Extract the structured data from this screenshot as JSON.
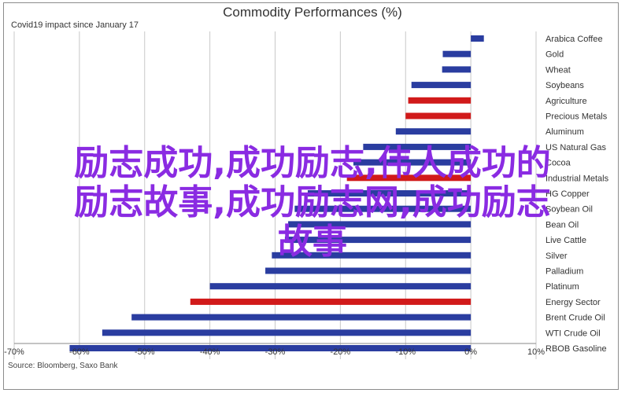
{
  "chart_data": {
    "type": "bar",
    "orientation": "horizontal",
    "title": "Commodity Performances (%)",
    "subtitle": "Covid19 impact since January 17",
    "source": "Source: Bloomberg, Saxo Bank",
    "xlim": [
      -70,
      10
    ],
    "x_ticks": [
      "-70%",
      "-60%",
      "-50%",
      "-40%",
      "-30%",
      "-20%",
      "-10%",
      "0%",
      "10%"
    ],
    "grid": true,
    "colors": {
      "default": "#2a3da0",
      "highlight": "#d11a1a"
    },
    "categories": [
      "Arabica Coffee",
      "Gold",
      "Wheat",
      "Soybeans",
      "Agriculture",
      "Precious Metals",
      "Aluminum",
      "US Natural Gas",
      "Cocoa",
      "Industrial Metals",
      "HG Copper",
      "Soybean Oil",
      "Bean Oil",
      "Live Cattle",
      "Silver",
      "Palladium",
      "Platinum",
      "Energy Sector",
      "Brent Crude Oil",
      "WTI Crude Oil",
      "RBOB Gasoline"
    ],
    "values": [
      2,
      -4.3,
      -4.4,
      -9.1,
      -9.6,
      -10,
      -11.5,
      -16.5,
      -18,
      -19,
      -25,
      -27,
      -28,
      -28.5,
      -30.5,
      -31.5,
      -40,
      -43,
      -52,
      -56.5,
      -61.5
    ],
    "highlighted": [
      false,
      false,
      false,
      false,
      true,
      true,
      false,
      false,
      false,
      true,
      false,
      false,
      false,
      false,
      false,
      false,
      false,
      true,
      false,
      false,
      false
    ]
  },
  "overlay_text": {
    "line1": "励志成功,成功励志,伟人成功的",
    "line2": "励志故事,成功励志网,成功励志",
    "line3": "故事"
  }
}
